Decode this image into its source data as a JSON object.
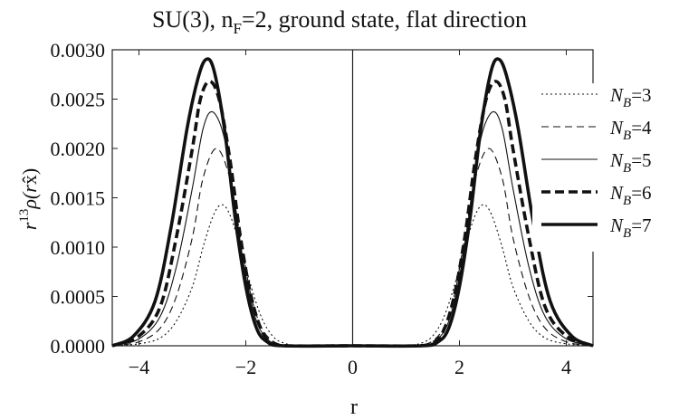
{
  "chart_data": {
    "type": "line",
    "title": "SU(3), n_F=2, ground state, flat direction",
    "title_parts": {
      "pre": "SU(3), n",
      "sub": "F",
      "post": "=2, ground state, flat direction"
    },
    "xlabel": "r",
    "ylabel": {
      "base": "r",
      "exp": "13",
      "rho": "ρ(r",
      "xhat": "x̂",
      "close": ")"
    },
    "xlim": [
      -4.5,
      4.5
    ],
    "ylim": [
      0,
      0.003
    ],
    "xticks": [
      {
        "value": -4,
        "label": "−4"
      },
      {
        "value": -2,
        "label": "−2"
      },
      {
        "value": 0,
        "label": "0"
      },
      {
        "value": 2,
        "label": "2"
      },
      {
        "value": 4,
        "label": "4"
      }
    ],
    "yticks": [
      {
        "value": 0.0,
        "label": "0.0000"
      },
      {
        "value": 0.0005,
        "label": "0.0005"
      },
      {
        "value": 0.001,
        "label": "0.0010"
      },
      {
        "value": 0.0015,
        "label": "0.0015"
      },
      {
        "value": 0.002,
        "label": "0.0020"
      },
      {
        "value": 0.0025,
        "label": "0.0025"
      },
      {
        "value": 0.003,
        "label": "0.0030"
      }
    ],
    "legend_position": "right",
    "series": [
      {
        "name": "N_B=3",
        "label_main": "N",
        "label_sub": "B",
        "label_tail": "=3",
        "style": "dotted",
        "x": [
          -4.5,
          -4.0,
          -3.6,
          -3.3,
          -3.0,
          -2.8,
          -2.6,
          -2.45,
          -2.3,
          -2.1,
          -1.9,
          -1.7,
          -1.5,
          -1.3,
          -1.0,
          0.0,
          1.0,
          1.3,
          1.5,
          1.7,
          1.9,
          2.1,
          2.3,
          2.45,
          2.6,
          2.8,
          3.0,
          3.3,
          3.6,
          4.0,
          4.5
        ],
        "y": [
          0.0,
          2e-05,
          8e-05,
          0.00025,
          0.0006,
          0.001,
          0.00133,
          0.00143,
          0.00133,
          0.001,
          0.0006,
          0.00028,
          0.0001,
          3e-05,
          5e-06,
          0.0,
          5e-06,
          3e-05,
          0.0001,
          0.00028,
          0.0006,
          0.001,
          0.00133,
          0.00143,
          0.00133,
          0.001,
          0.0006,
          0.00025,
          8e-05,
          2e-05,
          0.0
        ]
      },
      {
        "name": "N_B=4",
        "label_main": "N",
        "label_sub": "B",
        "label_tail": "=4",
        "style": "dashed",
        "x": [
          -4.5,
          -4.0,
          -3.6,
          -3.3,
          -3.0,
          -2.8,
          -2.55,
          -2.3,
          -2.1,
          -1.9,
          -1.7,
          -1.5,
          -1.3,
          -1.0,
          0.0,
          1.0,
          1.3,
          1.5,
          1.7,
          1.9,
          2.1,
          2.3,
          2.55,
          2.8,
          3.0,
          3.3,
          3.6,
          4.0,
          4.5
        ],
        "y": [
          0.0,
          4e-05,
          0.00018,
          0.0005,
          0.0011,
          0.0017,
          0.002,
          0.0017,
          0.0011,
          0.0005,
          0.00018,
          5e-05,
          1e-05,
          0.0,
          0.0,
          0.0,
          1e-05,
          5e-05,
          0.00018,
          0.0005,
          0.0011,
          0.0017,
          0.002,
          0.0017,
          0.0011,
          0.0005,
          0.00018,
          4e-05,
          0.0
        ]
      },
      {
        "name": "N_B=5",
        "label_main": "N",
        "label_sub": "B",
        "label_tail": "=5",
        "style": "thin",
        "x": [
          -4.5,
          -4.0,
          -3.6,
          -3.3,
          -3.0,
          -2.8,
          -2.62,
          -2.4,
          -2.2,
          -2.0,
          -1.8,
          -1.6,
          -1.4,
          -1.1,
          0.0,
          1.1,
          1.4,
          1.6,
          1.8,
          2.0,
          2.2,
          2.4,
          2.62,
          2.8,
          3.0,
          3.3,
          3.6,
          4.0,
          4.5
        ],
        "y": [
          0.0,
          7e-05,
          0.0003,
          0.0008,
          0.0016,
          0.0022,
          0.00237,
          0.0021,
          0.0014,
          0.0007,
          0.00025,
          7e-05,
          1e-05,
          0.0,
          0.0,
          0.0,
          1e-05,
          7e-05,
          0.00025,
          0.0007,
          0.0014,
          0.0021,
          0.00237,
          0.0022,
          0.0016,
          0.0008,
          0.0003,
          7e-05,
          0.0
        ]
      },
      {
        "name": "N_B=6",
        "label_main": "N",
        "label_sub": "B",
        "label_tail": "=6",
        "style": "thickdash",
        "x": [
          -4.5,
          -4.0,
          -3.6,
          -3.3,
          -3.0,
          -2.85,
          -2.68,
          -2.5,
          -2.3,
          -2.1,
          -1.9,
          -1.7,
          -1.5,
          -1.2,
          0.0,
          1.2,
          1.5,
          1.7,
          1.9,
          2.1,
          2.3,
          2.5,
          2.68,
          2.85,
          3.0,
          3.3,
          3.6,
          4.0,
          4.5
        ],
        "y": [
          0.0,
          0.0001,
          0.0004,
          0.0011,
          0.002,
          0.0025,
          0.00268,
          0.0025,
          0.0019,
          0.0011,
          0.0005,
          0.00015,
          3e-05,
          0.0,
          0.0,
          0.0,
          3e-05,
          0.00015,
          0.0005,
          0.0011,
          0.0019,
          0.0025,
          0.00268,
          0.0025,
          0.002,
          0.0011,
          0.0004,
          0.0001,
          0.0
        ]
      },
      {
        "name": "N_B=7",
        "label_main": "N",
        "label_sub": "B",
        "label_tail": "=7",
        "style": "thick",
        "x": [
          -4.5,
          -4.1,
          -3.7,
          -3.4,
          -3.1,
          -2.9,
          -2.75,
          -2.6,
          -2.4,
          -2.2,
          -2.0,
          -1.8,
          -1.6,
          -1.3,
          0.0,
          1.3,
          1.6,
          1.8,
          2.0,
          2.2,
          2.4,
          2.6,
          2.75,
          2.9,
          3.1,
          3.4,
          3.7,
          4.1,
          4.5
        ],
        "y": [
          0.0,
          0.0001,
          0.00045,
          0.0012,
          0.0022,
          0.0027,
          0.0029,
          0.0028,
          0.0022,
          0.0013,
          0.0006,
          0.00018,
          4e-05,
          0.0,
          0.0,
          0.0,
          4e-05,
          0.00018,
          0.0006,
          0.0013,
          0.0022,
          0.0028,
          0.0029,
          0.0027,
          0.0022,
          0.0012,
          0.00045,
          0.0001,
          0.0
        ]
      }
    ]
  }
}
